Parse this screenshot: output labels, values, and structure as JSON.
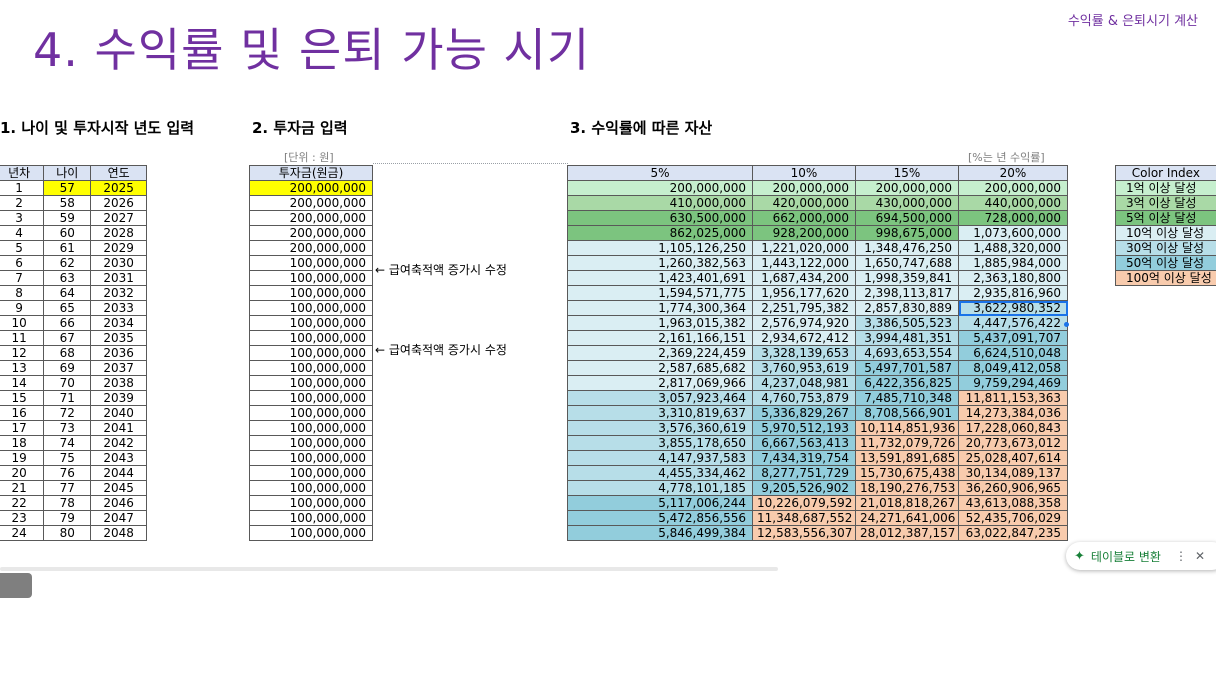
{
  "header": {
    "top_right": "수익률 & 은퇴시기 계산",
    "title": "4. 수익률 및 은퇴 가능 시기"
  },
  "sections": {
    "s1": "1. 나이 및 투자시작 년도 입력",
    "s2": "2. 투자금 입력",
    "s3": "3. 수익률에 따른 자산"
  },
  "unit_note": "[단위 : 원]",
  "rate_note": "[%는 년 수익률]",
  "age_table": {
    "headers": [
      "년차",
      "나이",
      "연도"
    ],
    "rows": [
      [
        "1",
        "57",
        "2025"
      ],
      [
        "2",
        "58",
        "2026"
      ],
      [
        "3",
        "59",
        "2027"
      ],
      [
        "4",
        "60",
        "2028"
      ],
      [
        "5",
        "61",
        "2029"
      ],
      [
        "6",
        "62",
        "2030"
      ],
      [
        "7",
        "63",
        "2031"
      ],
      [
        "8",
        "64",
        "2032"
      ],
      [
        "9",
        "65",
        "2033"
      ],
      [
        "10",
        "66",
        "2034"
      ],
      [
        "11",
        "67",
        "2035"
      ],
      [
        "12",
        "68",
        "2036"
      ],
      [
        "13",
        "69",
        "2037"
      ],
      [
        "14",
        "70",
        "2038"
      ],
      [
        "15",
        "71",
        "2039"
      ],
      [
        "16",
        "72",
        "2040"
      ],
      [
        "17",
        "73",
        "2041"
      ],
      [
        "18",
        "74",
        "2042"
      ],
      [
        "19",
        "75",
        "2043"
      ],
      [
        "20",
        "76",
        "2044"
      ],
      [
        "21",
        "77",
        "2045"
      ],
      [
        "22",
        "78",
        "2046"
      ],
      [
        "23",
        "79",
        "2047"
      ],
      [
        "24",
        "80",
        "2048"
      ]
    ]
  },
  "invest_table": {
    "header": "투자금(원금)",
    "values": [
      "200,000,000",
      "200,000,000",
      "200,000,000",
      "200,000,000",
      "200,000,000",
      "100,000,000",
      "100,000,000",
      "100,000,000",
      "100,000,000",
      "100,000,000",
      "100,000,000",
      "100,000,000",
      "100,000,000",
      "100,000,000",
      "100,000,000",
      "100,000,000",
      "100,000,000",
      "100,000,000",
      "100,000,000",
      "100,000,000",
      "100,000,000",
      "100,000,000",
      "100,000,000",
      "100,000,000"
    ]
  },
  "notes": {
    "note1": "← 급여축적액 증가시 수정",
    "note2": "← 급여축적액 증가시 수정"
  },
  "returns_table": {
    "headers": [
      "5%",
      "10%",
      "15%",
      "20%"
    ],
    "rows": [
      [
        "200,000,000",
        "200,000,000",
        "200,000,000",
        "200,000,000"
      ],
      [
        "410,000,000",
        "420,000,000",
        "430,000,000",
        "440,000,000"
      ],
      [
        "630,500,000",
        "662,000,000",
        "694,500,000",
        "728,000,000"
      ],
      [
        "862,025,000",
        "928,200,000",
        "998,675,000",
        "1,073,600,000"
      ],
      [
        "1,105,126,250",
        "1,221,020,000",
        "1,348,476,250",
        "1,488,320,000"
      ],
      [
        "1,260,382,563",
        "1,443,122,000",
        "1,650,747,688",
        "1,885,984,000"
      ],
      [
        "1,423,401,691",
        "1,687,434,200",
        "1,998,359,841",
        "2,363,180,800"
      ],
      [
        "1,594,571,775",
        "1,956,177,620",
        "2,398,113,817",
        "2,935,816,960"
      ],
      [
        "1,774,300,364",
        "2,251,795,382",
        "2,857,830,889",
        "3,622,980,352"
      ],
      [
        "1,963,015,382",
        "2,576,974,920",
        "3,386,505,523",
        "4,447,576,422"
      ],
      [
        "2,161,166,151",
        "2,934,672,412",
        "3,994,481,351",
        "5,437,091,707"
      ],
      [
        "2,369,224,459",
        "3,328,139,653",
        "4,693,653,554",
        "6,624,510,048"
      ],
      [
        "2,587,685,682",
        "3,760,953,619",
        "5,497,701,587",
        "8,049,412,058"
      ],
      [
        "2,817,069,966",
        "4,237,048,981",
        "6,422,356,825",
        "9,759,294,469"
      ],
      [
        "3,057,923,464",
        "4,760,753,879",
        "7,485,710,348",
        "11,811,153,363"
      ],
      [
        "3,310,819,637",
        "5,336,829,267",
        "8,708,566,901",
        "14,273,384,036"
      ],
      [
        "3,576,360,619",
        "5,970,512,193",
        "10,114,851,936",
        "17,228,060,843"
      ],
      [
        "3,855,178,650",
        "6,667,563,413",
        "11,732,079,726",
        "20,773,673,012"
      ],
      [
        "4,147,937,583",
        "7,434,319,754",
        "13,591,891,685",
        "25,028,407,614"
      ],
      [
        "4,455,334,462",
        "8,277,751,729",
        "15,730,675,438",
        "30,134,089,137"
      ],
      [
        "4,778,101,185",
        "9,205,526,902",
        "18,190,276,753",
        "36,260,906,965"
      ],
      [
        "5,117,006,244",
        "10,226,079,592",
        "21,018,818,267",
        "43,613,088,358"
      ],
      [
        "5,472,856,556",
        "11,348,687,552",
        "24,271,641,006",
        "52,435,706,029"
      ],
      [
        "5,846,499,384",
        "12,583,556,307",
        "28,012,387,157",
        "63,022,847,235"
      ]
    ]
  },
  "color_index": {
    "header": "Color Index",
    "items": [
      {
        "label": "1억 이상 달성",
        "color": "#c6efce"
      },
      {
        "label": "3억 이상 달성",
        "color": "#a9d9a6"
      },
      {
        "label": "5억 이상 달성",
        "color": "#7cc47f"
      },
      {
        "label": "10억 이상 달성",
        "color": "#daeef3"
      },
      {
        "label": "30억 이상 달성",
        "color": "#b7dee8"
      },
      {
        "label": "50억 이상 달성",
        "color": "#92cddc"
      },
      {
        "label": "100억 이상 달성",
        "color": "#f8cbad"
      }
    ]
  },
  "chip": {
    "label": "테이블로 변환",
    "more_icon": "⋮",
    "close_icon": "✕",
    "spark_icon": "✦"
  }
}
